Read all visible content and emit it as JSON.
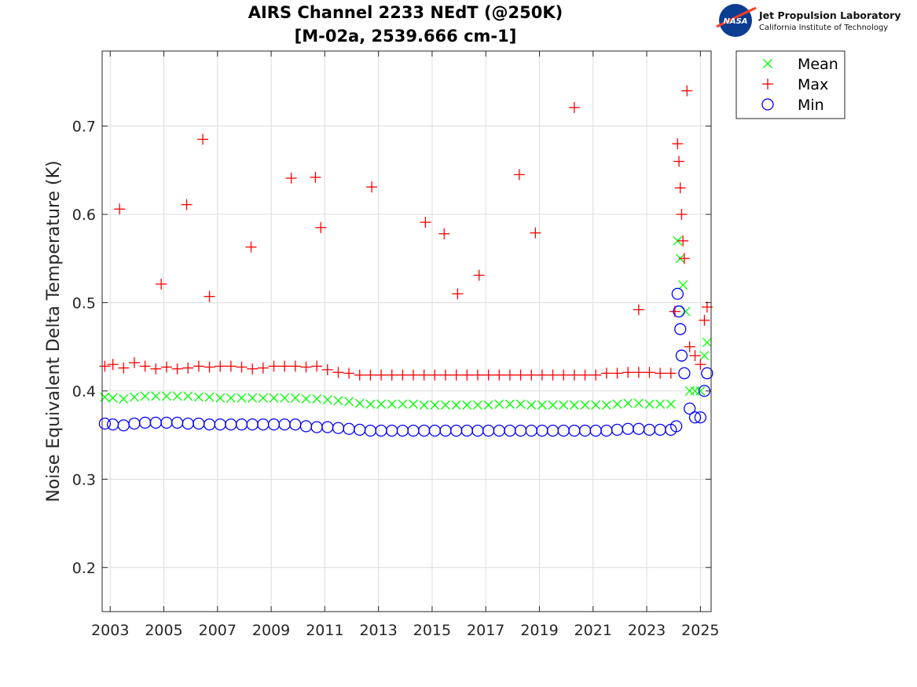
{
  "logo": {
    "badge_text": "NASA",
    "org_name": "Jet Propulsion Laboratory",
    "org_sub": "California Institute of Technology"
  },
  "chart_data": {
    "type": "scatter",
    "title": "AIRS Channel 2233 NEdT (@250K)",
    "subtitle": "[M-02a, 2539.666 cm-1]",
    "xlabel": "",
    "ylabel": "Noise Equivalent Delta Temperature (K)",
    "xlim": [
      2002.7,
      2025.4
    ],
    "ylim": [
      0.15,
      0.785
    ],
    "x_ticks": [
      2003,
      2005,
      2007,
      2009,
      2011,
      2013,
      2015,
      2017,
      2019,
      2021,
      2023,
      2025
    ],
    "y_ticks": [
      0.2,
      0.3,
      0.4,
      0.5,
      0.6,
      0.7
    ],
    "grid": true,
    "legend_position": "outside-top-right",
    "series": [
      {
        "name": "Mean",
        "marker": "x",
        "color": "#00ff00",
        "x": [
          2002.8,
          2003.1,
          2003.5,
          2003.9,
          2004.3,
          2004.7,
          2005.1,
          2005.5,
          2005.9,
          2006.3,
          2006.7,
          2007.1,
          2007.5,
          2007.9,
          2008.3,
          2008.7,
          2009.1,
          2009.5,
          2009.9,
          2010.3,
          2010.7,
          2011.1,
          2011.5,
          2011.9,
          2012.3,
          2012.7,
          2013.1,
          2013.5,
          2013.9,
          2014.3,
          2014.7,
          2015.1,
          2015.5,
          2015.9,
          2016.3,
          2016.7,
          2017.1,
          2017.5,
          2017.9,
          2018.3,
          2018.7,
          2019.1,
          2019.5,
          2019.9,
          2020.3,
          2020.7,
          2021.1,
          2021.5,
          2021.9,
          2022.3,
          2022.7,
          2023.1,
          2023.5,
          2023.9,
          2024.15,
          2024.25,
          2024.35,
          2024.45,
          2024.6,
          2024.8,
          2025.0,
          2025.15,
          2025.25
        ],
        "y": [
          0.393,
          0.392,
          0.391,
          0.393,
          0.394,
          0.394,
          0.394,
          0.394,
          0.394,
          0.393,
          0.393,
          0.392,
          0.392,
          0.392,
          0.392,
          0.392,
          0.392,
          0.392,
          0.392,
          0.391,
          0.391,
          0.39,
          0.389,
          0.388,
          0.386,
          0.385,
          0.385,
          0.385,
          0.385,
          0.385,
          0.384,
          0.384,
          0.384,
          0.384,
          0.384,
          0.384,
          0.384,
          0.385,
          0.385,
          0.385,
          0.384,
          0.384,
          0.384,
          0.384,
          0.384,
          0.384,
          0.384,
          0.384,
          0.385,
          0.386,
          0.386,
          0.385,
          0.385,
          0.385,
          0.57,
          0.55,
          0.52,
          0.49,
          0.4,
          0.4,
          0.4,
          0.44,
          0.455
        ]
      },
      {
        "name": "Max",
        "marker": "+",
        "color": "#ff0000",
        "x": [
          2002.8,
          2003.1,
          2003.5,
          2003.9,
          2004.3,
          2004.7,
          2005.1,
          2005.5,
          2005.9,
          2006.3,
          2006.7,
          2007.1,
          2007.5,
          2007.9,
          2008.3,
          2008.7,
          2009.1,
          2009.5,
          2009.9,
          2010.3,
          2010.7,
          2011.1,
          2011.5,
          2011.9,
          2012.3,
          2012.7,
          2013.1,
          2013.5,
          2013.9,
          2014.3,
          2014.7,
          2015.1,
          2015.5,
          2015.9,
          2016.3,
          2016.7,
          2017.1,
          2017.5,
          2017.9,
          2018.3,
          2018.7,
          2019.1,
          2019.5,
          2019.9,
          2020.3,
          2020.7,
          2021.1,
          2021.5,
          2021.9,
          2022.3,
          2022.7,
          2023.1,
          2023.5,
          2023.9,
          2003.35,
          2004.9,
          2005.85,
          2006.45,
          2006.7,
          2008.25,
          2009.75,
          2010.65,
          2010.85,
          2012.75,
          2014.75,
          2015.45,
          2015.95,
          2016.75,
          2018.25,
          2018.85,
          2020.3,
          2022.7,
          2024.05,
          2024.15,
          2024.2,
          2024.25,
          2024.3,
          2024.35,
          2024.4,
          2024.5,
          2024.6,
          2024.8,
          2025.0,
          2025.15,
          2025.25
        ],
        "y": [
          0.428,
          0.43,
          0.426,
          0.432,
          0.428,
          0.425,
          0.427,
          0.425,
          0.426,
          0.428,
          0.427,
          0.428,
          0.428,
          0.427,
          0.425,
          0.426,
          0.428,
          0.428,
          0.428,
          0.427,
          0.428,
          0.424,
          0.421,
          0.42,
          0.418,
          0.418,
          0.418,
          0.418,
          0.418,
          0.418,
          0.418,
          0.418,
          0.418,
          0.418,
          0.418,
          0.418,
          0.418,
          0.418,
          0.418,
          0.418,
          0.418,
          0.418,
          0.418,
          0.418,
          0.418,
          0.418,
          0.418,
          0.42,
          0.42,
          0.421,
          0.421,
          0.421,
          0.42,
          0.42,
          0.606,
          0.521,
          0.611,
          0.685,
          0.507,
          0.563,
          0.641,
          0.642,
          0.585,
          0.631,
          0.591,
          0.578,
          0.51,
          0.531,
          0.645,
          0.579,
          0.721,
          0.492,
          0.49,
          0.68,
          0.66,
          0.63,
          0.6,
          0.57,
          0.55,
          0.74,
          0.45,
          0.44,
          0.43,
          0.48,
          0.495
        ]
      },
      {
        "name": "Min",
        "marker": "o",
        "color": "#0000ff",
        "x": [
          2002.8,
          2003.1,
          2003.5,
          2003.9,
          2004.3,
          2004.7,
          2005.1,
          2005.5,
          2005.9,
          2006.3,
          2006.7,
          2007.1,
          2007.5,
          2007.9,
          2008.3,
          2008.7,
          2009.1,
          2009.5,
          2009.9,
          2010.3,
          2010.7,
          2011.1,
          2011.5,
          2011.9,
          2012.3,
          2012.7,
          2013.1,
          2013.5,
          2013.9,
          2014.3,
          2014.7,
          2015.1,
          2015.5,
          2015.9,
          2016.3,
          2016.7,
          2017.1,
          2017.5,
          2017.9,
          2018.3,
          2018.7,
          2019.1,
          2019.5,
          2019.9,
          2020.3,
          2020.7,
          2021.1,
          2021.5,
          2021.9,
          2022.3,
          2022.7,
          2023.1,
          2023.5,
          2023.9,
          2024.1,
          2024.15,
          2024.2,
          2024.25,
          2024.3,
          2024.4,
          2024.6,
          2024.8,
          2025.0,
          2025.15,
          2025.25
        ],
        "y": [
          0.363,
          0.362,
          0.361,
          0.363,
          0.364,
          0.364,
          0.364,
          0.364,
          0.363,
          0.363,
          0.362,
          0.362,
          0.362,
          0.362,
          0.362,
          0.362,
          0.362,
          0.362,
          0.362,
          0.36,
          0.359,
          0.359,
          0.358,
          0.357,
          0.356,
          0.355,
          0.355,
          0.355,
          0.355,
          0.355,
          0.355,
          0.355,
          0.355,
          0.355,
          0.355,
          0.355,
          0.355,
          0.355,
          0.355,
          0.355,
          0.355,
          0.355,
          0.355,
          0.355,
          0.355,
          0.355,
          0.355,
          0.355,
          0.356,
          0.357,
          0.357,
          0.356,
          0.356,
          0.356,
          0.36,
          0.51,
          0.49,
          0.47,
          0.44,
          0.42,
          0.38,
          0.37,
          0.37,
          0.4,
          0.42
        ]
      }
    ]
  }
}
